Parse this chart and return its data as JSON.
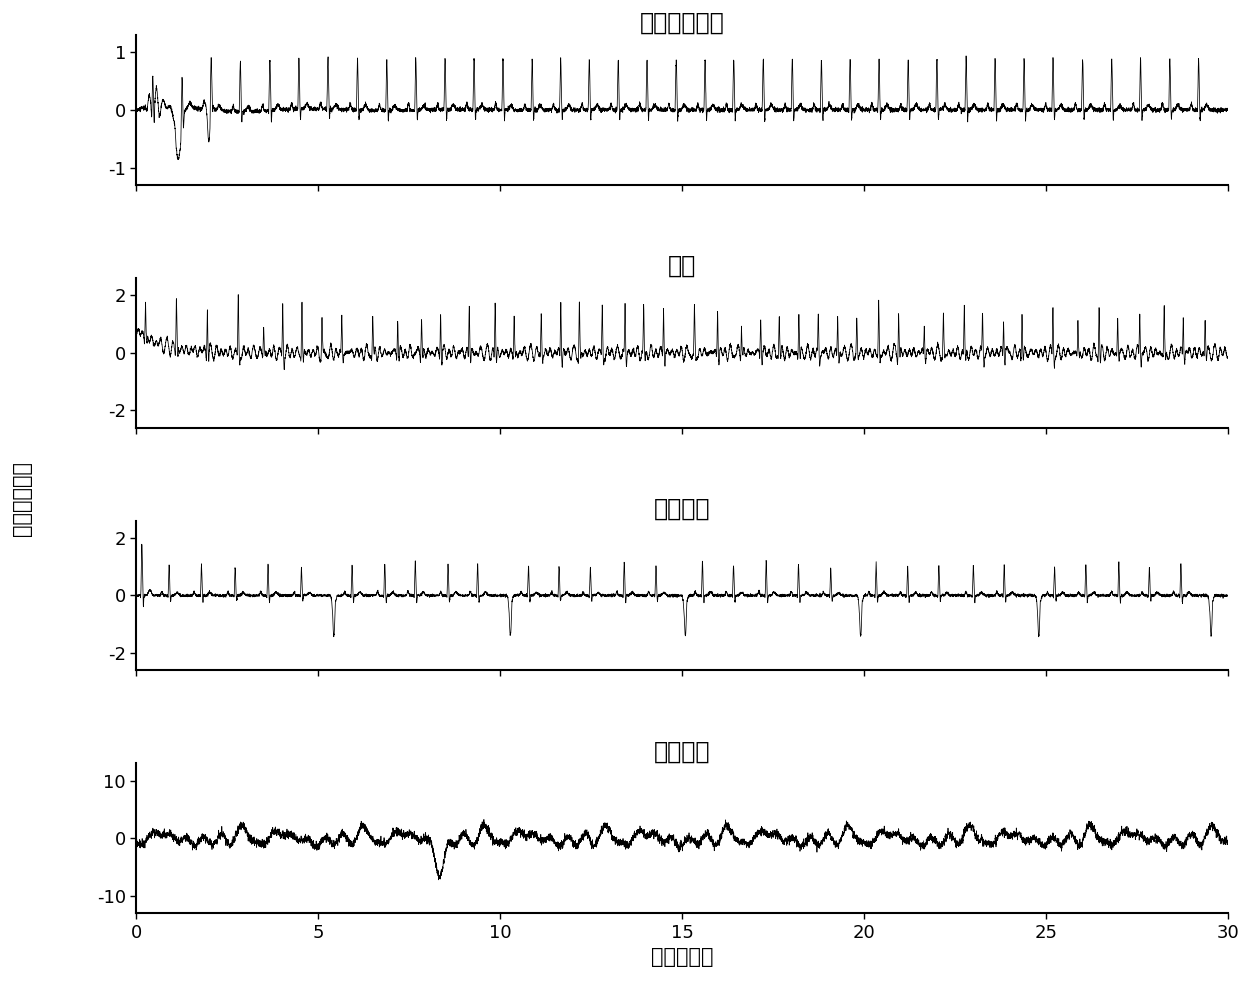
{
  "title1": "正常窦性心律",
  "title2": "房颤",
  "title3": "其他心律",
  "title4": "噪声过高",
  "xlabel": "时间（秒）",
  "ylabel": "电势（毫伏）",
  "xlim": [
    0,
    30
  ],
  "ylim1": [
    -1.3,
    1.3
  ],
  "ylim2": [
    -2.6,
    2.6
  ],
  "ylim3": [
    -2.6,
    2.6
  ],
  "ylim4": [
    -13,
    13
  ],
  "yticks1": [
    -1,
    0,
    1
  ],
  "yticks2": [
    -2,
    0,
    2
  ],
  "yticks3": [
    -2,
    0,
    2
  ],
  "yticks4": [
    -10,
    0,
    10
  ],
  "xticks": [
    0,
    5,
    10,
    15,
    20,
    25,
    30
  ],
  "fs": 360,
  "duration": 30,
  "line_color": "#000000",
  "bg_color": "#ffffff",
  "title_fontsize": 17,
  "label_fontsize": 15,
  "tick_fontsize": 13
}
